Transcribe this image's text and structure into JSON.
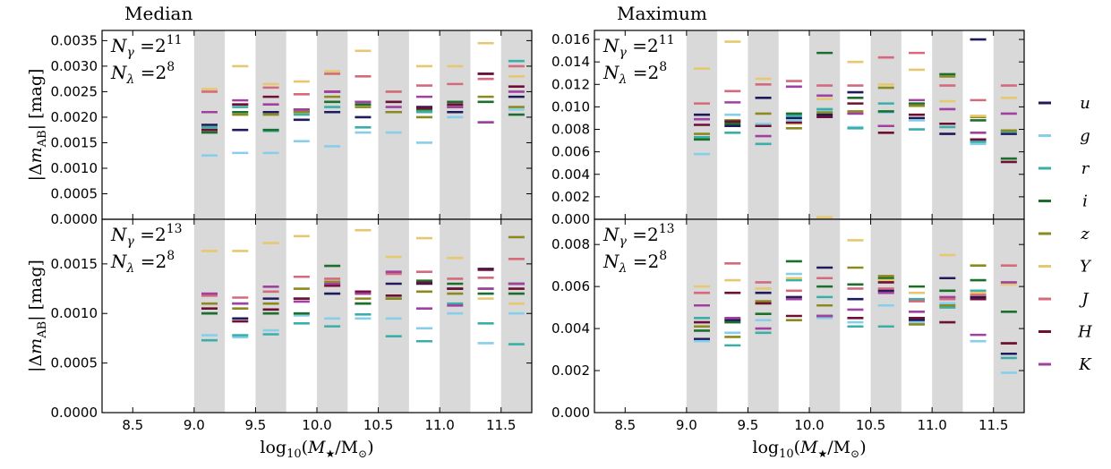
{
  "colors": {
    "u": "#1f1a5c",
    "g": "#87ceeb",
    "r": "#3aafa9",
    "i": "#1b6e2c",
    "z": "#8a8a1e",
    "Y": "#e6c870",
    "J": "#d46a7c",
    "H": "#6e0f34",
    "K": "#a040a0",
    "shade": "#d9d9d9"
  },
  "x_tick_labels": [
    "8.5",
    "9.0",
    "9.5",
    "10.0",
    "10.5",
    "11.0",
    "11.5"
  ],
  "xlabel": "log10(M★/M⊙)",
  "ylabel": "|ΔmAB| [mag]",
  "legend": [
    {
      "key": "u",
      "label": "u"
    },
    {
      "key": "g",
      "label": "g"
    },
    {
      "key": "r",
      "label": "r"
    },
    {
      "key": "i",
      "label": "i"
    },
    {
      "key": "z",
      "label": "z"
    },
    {
      "key": "Y",
      "label": "Y"
    },
    {
      "key": "J",
      "label": "J"
    },
    {
      "key": "H",
      "label": "H"
    },
    {
      "key": "K",
      "label": "K"
    }
  ],
  "chart_data": [
    {
      "id": "median-top",
      "type": "scatter",
      "column_title": "Median",
      "annotation": [
        "Nγ = 2^11",
        "Nλ = 2^8"
      ],
      "xlim": [
        8.25,
        11.75
      ],
      "ylim": [
        0,
        0.0037
      ],
      "y_ticks": [
        "0.0000",
        "0.0005",
        "0.0010",
        "0.0015",
        "0.0020",
        "0.0025",
        "0.0030",
        "0.0035"
      ],
      "y_tick_values": [
        0,
        0.0005,
        0.001,
        0.0015,
        0.002,
        0.0025,
        0.003,
        0.0035
      ],
      "bins": [
        9.125,
        9.375,
        9.625,
        9.875,
        10.125,
        10.375,
        10.625,
        10.875,
        11.125,
        11.375,
        11.625
      ],
      "series": [
        {
          "name": "u",
          "values": [
            0.00185,
            0.00175,
            0.0021,
            0.00195,
            0.0021,
            0.002,
            0.0021,
            0.0022,
            0.0021,
            0.00285,
            0.0024
          ]
        },
        {
          "name": "g",
          "values": [
            0.00125,
            0.0013,
            0.0013,
            0.00153,
            0.00143,
            0.0017,
            0.0017,
            0.0015,
            0.002,
            0.0019,
            0.00215
          ]
        },
        {
          "name": "r",
          "values": [
            0.0018,
            0.0022,
            0.00173,
            0.00205,
            0.0022,
            0.0018,
            0.0023,
            0.0021,
            0.0022,
            0.0019,
            0.0031
          ]
        },
        {
          "name": "i",
          "values": [
            0.0017,
            0.0021,
            0.00175,
            0.0021,
            0.0023,
            0.00225,
            0.0021,
            0.00215,
            0.0023,
            0.0023,
            0.00205
          ]
        },
        {
          "name": "z",
          "values": [
            0.00175,
            0.00205,
            0.00205,
            0.0021,
            0.0024,
            0.0022,
            0.0021,
            0.002,
            0.0022,
            0.0024,
            0.0022
          ]
        },
        {
          "name": "Y",
          "values": [
            0.00255,
            0.003,
            0.00265,
            0.0027,
            0.0029,
            0.0033,
            0.0025,
            0.003,
            0.003,
            0.00345,
            0.0028
          ]
        },
        {
          "name": "J",
          "values": [
            0.0025,
            0.00225,
            0.00258,
            0.00245,
            0.00285,
            0.0028,
            0.0025,
            0.00262,
            0.00265,
            0.00275,
            0.003
          ]
        },
        {
          "name": "H",
          "values": [
            0.00175,
            0.00225,
            0.0024,
            0.00215,
            0.0025,
            0.0023,
            0.0023,
            0.00218,
            0.00225,
            0.00285,
            0.0026
          ]
        },
        {
          "name": "K",
          "values": [
            0.0021,
            0.00233,
            0.00225,
            0.00215,
            0.0025,
            0.0023,
            0.0022,
            0.0024,
            0.0022,
            0.0019,
            0.0025
          ]
        }
      ]
    },
    {
      "id": "median-bottom",
      "type": "scatter",
      "annotation": [
        "Nγ = 2^13",
        "Nλ = 2^8"
      ],
      "xlim": [
        8.25,
        11.75
      ],
      "ylim": [
        0,
        0.00195
      ],
      "y_ticks": [
        "0.0000",
        "0.0005",
        "0.0010",
        "0.0015"
      ],
      "y_tick_values": [
        0,
        0.0005,
        0.001,
        0.0015
      ],
      "bins": [
        9.125,
        9.375,
        9.625,
        9.875,
        10.125,
        10.375,
        10.625,
        10.875,
        11.125,
        11.375,
        11.625
      ],
      "series": [
        {
          "name": "u",
          "values": [
            0.001,
            0.00095,
            0.00115,
            0.00115,
            0.0012,
            0.0011,
            0.0013,
            0.0013,
            0.00125,
            0.00145,
            0.0013
          ]
        },
        {
          "name": "g",
          "values": [
            0.00078,
            0.00076,
            0.00083,
            0.00098,
            0.00095,
            0.00095,
            0.00095,
            0.00085,
            0.001,
            0.0007,
            0.001
          ]
        },
        {
          "name": "r",
          "values": [
            0.00073,
            0.00078,
            0.00079,
            0.0009,
            0.00087,
            0.00099,
            0.00077,
            0.00072,
            0.0011,
            0.0009,
            0.00069
          ]
        },
        {
          "name": "i",
          "values": [
            0.001,
            0.0011,
            0.001,
            0.001,
            0.00148,
            0.0011,
            0.00115,
            0.00133,
            0.0013,
            0.0012,
            0.0012
          ]
        },
        {
          "name": "z",
          "values": [
            0.0011,
            0.00105,
            0.0011,
            0.00125,
            0.00132,
            0.00115,
            0.00115,
            0.00122,
            0.0012,
            0.00125,
            0.00177
          ]
        },
        {
          "name": "Y",
          "values": [
            0.00163,
            0.00163,
            0.00171,
            0.00178,
            0.0013,
            0.00184,
            0.00157,
            0.00176,
            0.00156,
            0.00115,
            0.0011
          ]
        },
        {
          "name": "J",
          "values": [
            0.00118,
            0.00116,
            0.00122,
            0.00137,
            0.00135,
            0.0012,
            0.0014,
            0.00142,
            0.00135,
            0.00136,
            0.00155
          ]
        },
        {
          "name": "H",
          "values": [
            0.00105,
            0.00092,
            0.00104,
            0.00115,
            0.00128,
            0.00122,
            0.00118,
            0.00131,
            0.00125,
            0.00144,
            0.00125
          ]
        },
        {
          "name": "K",
          "values": [
            0.0012,
            0.0011,
            0.00127,
            0.00112,
            0.0013,
            0.0012,
            0.00142,
            0.00105,
            0.00108,
            0.00125,
            0.0013
          ]
        }
      ]
    },
    {
      "id": "maximum-top",
      "type": "scatter",
      "column_title": "Maximum",
      "annotation": [
        "Nγ = 2^11",
        "Nλ = 2^8"
      ],
      "xlim": [
        8.25,
        11.75
      ],
      "ylim": [
        0,
        0.0168
      ],
      "y_ticks": [
        "0.000",
        "0.002",
        "0.004",
        "0.006",
        "0.008",
        "0.010",
        "0.012",
        "0.014",
        "0.016"
      ],
      "y_tick_values": [
        0,
        0.002,
        0.004,
        0.006,
        0.008,
        0.01,
        0.012,
        0.014,
        0.016
      ],
      "bins": [
        9.125,
        9.375,
        9.625,
        9.875,
        10.125,
        10.375,
        10.625,
        10.875,
        11.125,
        11.375,
        11.625
      ],
      "series": [
        {
          "name": "u",
          "values": [
            0.0093,
            0.0083,
            0.0108,
            0.009,
            0.0093,
            0.0113,
            0.0083,
            0.009,
            0.0076,
            0.016,
            0.0076
          ]
        },
        {
          "name": "g",
          "values": [
            0.0058,
            0.0093,
            0.0085,
            0.0088,
            0.0096,
            0.0082,
            0.0095,
            0.0088,
            0.0085,
            0.0067,
            0.0078
          ]
        },
        {
          "name": "r",
          "values": [
            0.0073,
            0.0077,
            0.0067,
            0.0092,
            0.0098,
            0.0081,
            0.0103,
            0.008,
            0.0082,
            0.0069,
            0.0078
          ]
        },
        {
          "name": "i",
          "values": [
            0.0071,
            0.0085,
            0.0083,
            0.0094,
            0.0148,
            0.0108,
            0.0096,
            0.0103,
            0.0129,
            0.0088,
            0.0054
          ]
        },
        {
          "name": "z",
          "values": [
            0.0076,
            0.0088,
            0.0094,
            0.0081,
            0.0095,
            0.0096,
            0.0117,
            0.0101,
            0.0127,
            0.0091,
            0.0079
          ]
        },
        {
          "name": "Y",
          "values": [
            0.0134,
            0.0158,
            0.0125,
            0.0085,
            0.0107,
            0.014,
            0.012,
            0.0133,
            0.0105,
            0.0092,
            0.0108
          ]
        },
        {
          "name": "J",
          "values": [
            0.0103,
            0.0114,
            0.012,
            0.0123,
            0.0119,
            0.0119,
            0.0144,
            0.0148,
            0.0119,
            0.0106,
            0.0119
          ]
        },
        {
          "name": "H",
          "values": [
            0.0084,
            0.0087,
            0.0083,
            0.0086,
            0.0091,
            0.0103,
            0.0077,
            0.0093,
            0.0085,
            0.0071,
            0.0051
          ]
        },
        {
          "name": "K",
          "values": [
            0.0089,
            0.0104,
            0.0074,
            0.0118,
            0.011,
            0.0094,
            0.0083,
            0.0106,
            0.0098,
            0.0077,
            0.0094
          ]
        }
      ]
    },
    {
      "id": "maximum-bottom",
      "type": "scatter",
      "annotation": [
        "Nγ = 2^13",
        "Nλ = 2^8"
      ],
      "xlim": [
        8.25,
        11.75
      ],
      "ylim": [
        0,
        0.0092
      ],
      "y_ticks": [
        "0.000",
        "0.002",
        "0.004",
        "0.006",
        "0.008"
      ],
      "y_tick_values": [
        0,
        0.002,
        0.004,
        0.006,
        0.008
      ],
      "bins": [
        9.125,
        9.375,
        9.625,
        9.875,
        10.125,
        10.375,
        10.625,
        10.875,
        11.125,
        11.375,
        11.625
      ],
      "series": [
        {
          "name": "u",
          "values": [
            0.0035,
            0.0044,
            0.0057,
            0.0055,
            0.0069,
            0.0054,
            0.0058,
            0.0044,
            0.0064,
            0.0055,
            0.0028
          ]
        },
        {
          "name": "g",
          "values": [
            0.0034,
            0.0038,
            0.0044,
            0.0066,
            0.0045,
            0.0043,
            0.0051,
            0.0043,
            0.0052,
            0.0034,
            0.0019
          ]
        },
        {
          "name": "r",
          "values": [
            0.0045,
            0.0032,
            0.0038,
            0.0063,
            0.0055,
            0.0041,
            0.0041,
            0.0054,
            0.005,
            0.0058,
            0.0026
          ]
        },
        {
          "name": "i",
          "values": [
            0.0039,
            0.0043,
            0.0047,
            0.0072,
            0.006,
            0.0061,
            0.0064,
            0.006,
            0.0058,
            0.0063,
            0.0048
          ]
        },
        {
          "name": "z",
          "values": [
            0.0041,
            0.0036,
            0.0053,
            0.0044,
            0.0051,
            0.0069,
            0.0065,
            0.0042,
            0.0051,
            0.007,
            0.0033
          ]
        },
        {
          "name": "Y",
          "values": [
            0.006,
            0.0063,
            0.0059,
            0.0064,
            0.0093,
            0.0082,
            0.0063,
            0.0057,
            0.0075,
            0.0057,
            0.0061
          ]
        },
        {
          "name": "J",
          "values": [
            0.0057,
            0.0071,
            0.0062,
            0.0058,
            0.0064,
            0.0059,
            0.0059,
            0.0053,
            0.0054,
            0.0056,
            0.007
          ]
        },
        {
          "name": "H",
          "values": [
            0.0043,
            0.0057,
            0.0052,
            0.0046,
            0.0046,
            0.0045,
            0.0062,
            0.0045,
            0.0043,
            0.0054,
            0.0033
          ]
        },
        {
          "name": "K",
          "values": [
            0.0051,
            0.0045,
            0.004,
            0.0054,
            0.0046,
            0.0049,
            0.0057,
            0.0048,
            0.0055,
            0.0037,
            0.0062
          ]
        }
      ]
    }
  ]
}
